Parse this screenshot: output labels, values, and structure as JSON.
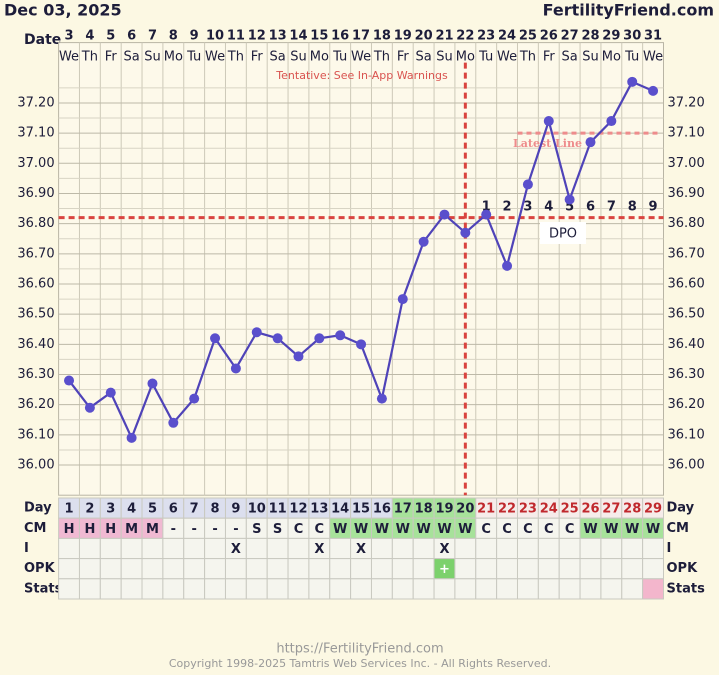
{
  "chart_data": {
    "type": "line",
    "title": "Dec 03, 2025",
    "site": "FertilityFriend.com",
    "date_label": "Date",
    "categories": [
      "3",
      "4",
      "5",
      "6",
      "7",
      "8",
      "9",
      "10",
      "11",
      "12",
      "13",
      "14",
      "15",
      "16",
      "17",
      "18",
      "19",
      "20",
      "21",
      "22",
      "23",
      "24",
      "25",
      "26",
      "27",
      "28",
      "29",
      "30",
      "31"
    ],
    "weekdays": [
      "We",
      "Th",
      "Fr",
      "Sa",
      "Su",
      "Mo",
      "Tu",
      "We",
      "Th",
      "Fr",
      "Sa",
      "Su",
      "Mo",
      "Tu",
      "We",
      "Th",
      "Fr",
      "Sa",
      "Su",
      "Mo",
      "Tu",
      "We",
      "Th",
      "Fr",
      "Sa",
      "Su",
      "Mo",
      "Tu",
      "We"
    ],
    "values": [
      36.28,
      36.19,
      36.24,
      36.09,
      36.27,
      36.14,
      36.22,
      36.42,
      36.32,
      36.44,
      36.42,
      36.36,
      36.42,
      36.43,
      36.4,
      36.22,
      36.55,
      36.74,
      36.83,
      36.77,
      36.83,
      36.66,
      36.93,
      37.14,
      36.88,
      37.07,
      37.14,
      37.27,
      37.24
    ],
    "color": "#4f43b8",
    "marker_color": "#5a4fcc",
    "ylim": [
      35.9,
      37.4
    ],
    "yticks": [
      {
        "value": 36,
        "label": "36.00"
      },
      {
        "value": 36.1,
        "label": "36.10"
      },
      {
        "value": 36.2,
        "label": "36.20"
      },
      {
        "value": 36.3,
        "label": "36.30"
      },
      {
        "value": 36.4,
        "label": "36.40"
      },
      {
        "value": 36.5,
        "label": "36.50"
      },
      {
        "value": 36.6,
        "label": "36.60"
      },
      {
        "value": 36.7,
        "label": "36.70"
      },
      {
        "value": 36.8,
        "label": "36.80"
      },
      {
        "value": 36.9,
        "label": "36.90"
      },
      {
        "value": 37,
        "label": "37.00"
      },
      {
        "value": 37.1,
        "label": "37.10"
      },
      {
        "value": 37.2,
        "label": "37.20"
      }
    ],
    "grid": true,
    "coverline": 36.82,
    "coverline_color": "#d9443f",
    "ovulation_day": 20,
    "annotation": "Tentative: See In-App Warnings",
    "latest_line": {
      "label": "Latest Line",
      "value": 37.1,
      "start_day": 23,
      "color": "#ee8c8c"
    },
    "dpo_label": "DPO",
    "dpo": [
      null,
      null,
      null,
      null,
      null,
      null,
      null,
      null,
      null,
      null,
      null,
      null,
      null,
      null,
      null,
      null,
      null,
      null,
      null,
      null,
      1,
      2,
      3,
      4,
      5,
      6,
      7,
      8,
      9
    ],
    "table": {
      "day_label": "Day",
      "days": [
        1,
        2,
        3,
        4,
        5,
        6,
        7,
        8,
        9,
        10,
        11,
        12,
        13,
        14,
        15,
        16,
        17,
        18,
        19,
        20,
        21,
        22,
        23,
        24,
        25,
        26,
        27,
        28,
        29
      ],
      "day_fills": [
        "#dcdfee",
        "#dcdfee",
        "#dcdfee",
        "#dcdfee",
        "#dcdfee",
        "#dcdfee",
        "#dcdfee",
        "#dcdfee",
        "#dcdfee",
        "#dcdfee",
        "#dcdfee",
        "#dcdfee",
        "#dcdfee",
        "#dcdfee",
        "#dcdfee",
        "#dcdfee",
        "#a7e29a",
        "#a7e29a",
        "#a7e29a",
        "#a7e29a",
        "#f6ecea",
        "#f6ecea",
        "#f6ecea",
        "#f6ecea",
        "#f6ecea",
        "#f6ecea",
        "#f6ecea",
        "#f6ecea",
        "#f6ecea"
      ],
      "day_text_colors": [
        "#1d1d3a",
        "#1d1d3a",
        "#1d1d3a",
        "#1d1d3a",
        "#1d1d3a",
        "#1d1d3a",
        "#1d1d3a",
        "#1d1d3a",
        "#1d1d3a",
        "#1d1d3a",
        "#1d1d3a",
        "#1d1d3a",
        "#1d1d3a",
        "#1d1d3a",
        "#1d1d3a",
        "#1d1d3a",
        "#1d1d3a",
        "#1d1d3a",
        "#1d1d3a",
        "#1d1d3a",
        "#c0282d",
        "#c0282d",
        "#c0282d",
        "#c0282d",
        "#c0282d",
        "#c0282d",
        "#c0282d",
        "#c0282d",
        "#c0282d"
      ],
      "cm_label": "CM",
      "cm": [
        "H",
        "H",
        "H",
        "M",
        "M",
        "-",
        "-",
        "-",
        "-",
        "S",
        "S",
        "C",
        "C",
        "W",
        "W",
        "W",
        "W",
        "W",
        "W",
        "W",
        "C",
        "C",
        "C",
        "C",
        "C",
        "W",
        "W",
        "W",
        "W"
      ],
      "cm_fills": [
        "#f0b9d2",
        "#f0b9d2",
        "#f0b9d2",
        "#f0b9d2",
        "#f0b9d2",
        null,
        null,
        null,
        null,
        null,
        null,
        null,
        null,
        "#a7e29a",
        "#a7e29a",
        "#a7e29a",
        "#a7e29a",
        "#a7e29a",
        "#a7e29a",
        "#a7e29a",
        null,
        null,
        null,
        null,
        null,
        "#a7e29a",
        "#a7e29a",
        "#a7e29a",
        "#a7e29a"
      ],
      "i_label": "I",
      "intercourse": [
        null,
        null,
        null,
        null,
        null,
        null,
        null,
        null,
        "X",
        null,
        null,
        null,
        "X",
        null,
        "X",
        null,
        null,
        null,
        "X",
        null,
        null,
        null,
        null,
        null,
        null,
        null,
        null,
        null,
        null
      ],
      "opk_label": "OPK",
      "opk": [
        null,
        null,
        null,
        null,
        null,
        null,
        null,
        null,
        null,
        null,
        null,
        null,
        null,
        null,
        null,
        null,
        null,
        null,
        "+",
        null,
        null,
        null,
        null,
        null,
        null,
        null,
        null,
        null,
        null
      ],
      "opk_fills": [
        null,
        null,
        null,
        null,
        null,
        null,
        null,
        null,
        null,
        null,
        null,
        null,
        null,
        null,
        null,
        null,
        null,
        null,
        "#7cd16c",
        null,
        null,
        null,
        null,
        null,
        null,
        null,
        null,
        null,
        null
      ],
      "stats_label": "Stats",
      "stats_fills": [
        null,
        null,
        null,
        null,
        null,
        null,
        null,
        null,
        null,
        null,
        null,
        null,
        null,
        null,
        null,
        null,
        null,
        null,
        null,
        null,
        null,
        null,
        null,
        null,
        null,
        null,
        null,
        null,
        "#f3b6cc"
      ],
      "cell_fill": "#f5f5ee"
    },
    "footer_url": "https://FertilityFriend.com",
    "copyright": "Copyright 1998-2025 Tamtris Web Services Inc. - All Rights Reserved."
  }
}
